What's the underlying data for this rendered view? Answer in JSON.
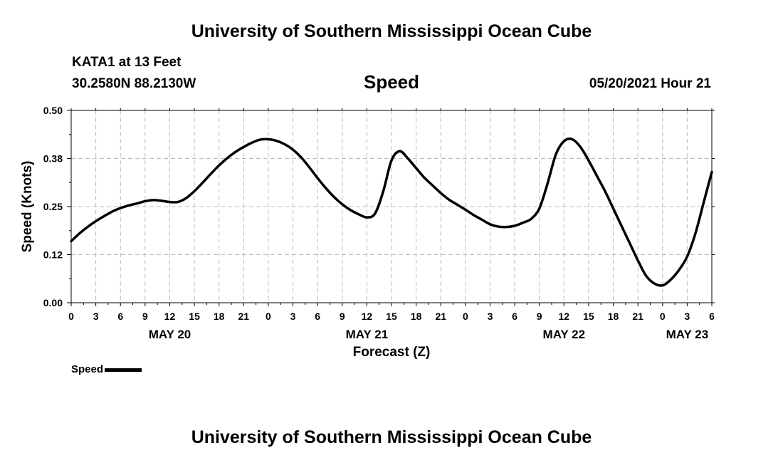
{
  "header": {
    "title": "University of Southern Mississippi Ocean Cube",
    "station": "KATA1 at 13 Feet",
    "coords": "30.2580N  88.2130W",
    "variable": "Speed",
    "issued": "05/20/2021 Hour 21"
  },
  "footer": {
    "title": "University of Southern Mississippi Ocean Cube"
  },
  "legend": {
    "label": "Speed"
  },
  "chart_data": {
    "type": "line",
    "title": "Speed",
    "xlabel": "Forecast (Z)",
    "ylabel": "Speed (Knots)",
    "ylim": [
      0,
      0.5
    ],
    "xlim": [
      0,
      78
    ],
    "y_ticks": [
      "0.00",
      "0.12",
      "0.25",
      "0.38",
      "0.50"
    ],
    "y_tick_values": [
      0,
      0.125,
      0.25,
      0.375,
      0.5
    ],
    "x_tick_labels": [
      "0",
      "3",
      "6",
      "9",
      "12",
      "15",
      "18",
      "21",
      "0",
      "3",
      "6",
      "9",
      "12",
      "15",
      "18",
      "21",
      "0",
      "3",
      "6",
      "9",
      "12",
      "15",
      "18",
      "21",
      "0",
      "3",
      "6"
    ],
    "date_labels": [
      {
        "label": "MAY 20",
        "hour": 12
      },
      {
        "label": "MAY 21",
        "hour": 36
      },
      {
        "label": "MAY 22",
        "hour": 60
      },
      {
        "label": "MAY 23",
        "hour": 75
      }
    ],
    "grid": true,
    "color": "#000000",
    "series": [
      {
        "name": "Speed",
        "x": [
          0,
          1,
          2,
          3,
          4,
          5,
          6,
          7,
          8,
          9,
          10,
          11,
          12,
          13,
          14,
          15,
          16,
          17,
          18,
          19,
          20,
          21,
          22,
          23,
          24,
          25,
          26,
          27,
          28,
          29,
          30,
          31,
          32,
          33,
          34,
          35,
          36,
          37,
          38,
          39,
          40,
          41,
          42,
          43,
          44,
          45,
          46,
          47,
          48,
          49,
          50,
          51,
          52,
          53,
          54,
          55,
          56,
          57,
          58,
          59,
          60,
          61,
          62,
          63,
          64,
          65,
          66,
          67,
          68,
          69,
          70,
          71,
          72,
          73,
          74,
          75,
          76,
          77,
          78
        ],
        "values": [
          0.16,
          0.18,
          0.197,
          0.212,
          0.225,
          0.237,
          0.246,
          0.253,
          0.258,
          0.264,
          0.267,
          0.265,
          0.262,
          0.262,
          0.272,
          0.29,
          0.312,
          0.335,
          0.357,
          0.376,
          0.392,
          0.405,
          0.416,
          0.424,
          0.425,
          0.421,
          0.412,
          0.398,
          0.378,
          0.352,
          0.324,
          0.298,
          0.275,
          0.256,
          0.241,
          0.23,
          0.222,
          0.232,
          0.29,
          0.37,
          0.394,
          0.375,
          0.35,
          0.325,
          0.305,
          0.285,
          0.268,
          0.255,
          0.242,
          0.228,
          0.216,
          0.204,
          0.198,
          0.197,
          0.2,
          0.208,
          0.218,
          0.245,
          0.31,
          0.385,
          0.42,
          0.425,
          0.405,
          0.37,
          0.33,
          0.29,
          0.245,
          0.2,
          0.155,
          0.11,
          0.07,
          0.05,
          0.045,
          0.06,
          0.085,
          0.12,
          0.18,
          0.26,
          0.34
        ]
      }
    ]
  }
}
